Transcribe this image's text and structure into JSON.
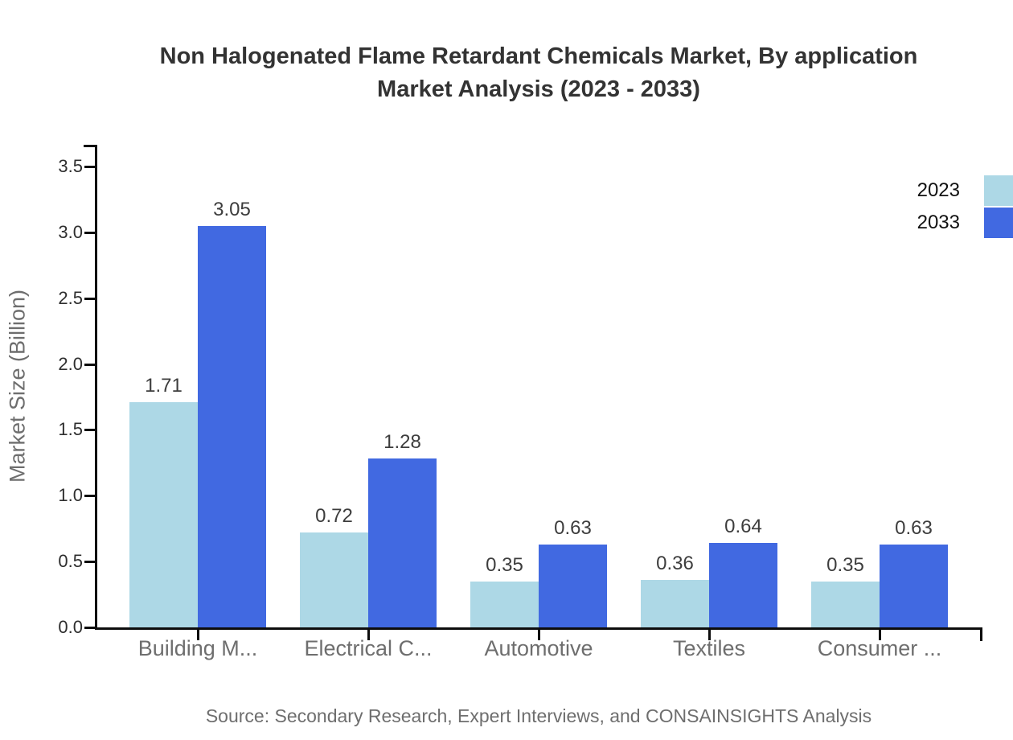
{
  "title": {
    "line1": "Non Halogenated Flame Retardant Chemicals Market, By application",
    "line2": "Market Analysis (2023 - 2033)"
  },
  "source": "Source: Secondary Research, Expert Interviews, and CONSAINSIGHTS Analysis",
  "chart_data": {
    "type": "bar",
    "title": "Non Halogenated Flame Retardant Chemicals Market, By application Market Analysis (2023 - 2033)",
    "categories": [
      "Building M...",
      "Electrical C...",
      "Automotive",
      "Textiles",
      "Consumer ..."
    ],
    "series": [
      {
        "name": "2023",
        "color": "#ADD8E6",
        "values": [
          1.71,
          0.72,
          0.35,
          0.36,
          0.35
        ]
      },
      {
        "name": "2033",
        "color": "#4169E1",
        "values": [
          3.05,
          1.28,
          0.63,
          0.64,
          0.63
        ]
      }
    ],
    "xlabel": "",
    "ylabel": "Market Size (Billion)",
    "ylim": [
      0,
      3.5
    ],
    "yticks": [
      0.0,
      0.5,
      1.0,
      1.5,
      2.0,
      2.5,
      3.0,
      3.5
    ],
    "ytick_labels": [
      "0.0",
      "0.5",
      "1.0",
      "1.5",
      "2.0",
      "2.5",
      "3.0",
      "3.5"
    ],
    "grid": false,
    "legend_position": "right",
    "value_labels_decimals": 2,
    "axis_color": "#0d0d0d"
  }
}
